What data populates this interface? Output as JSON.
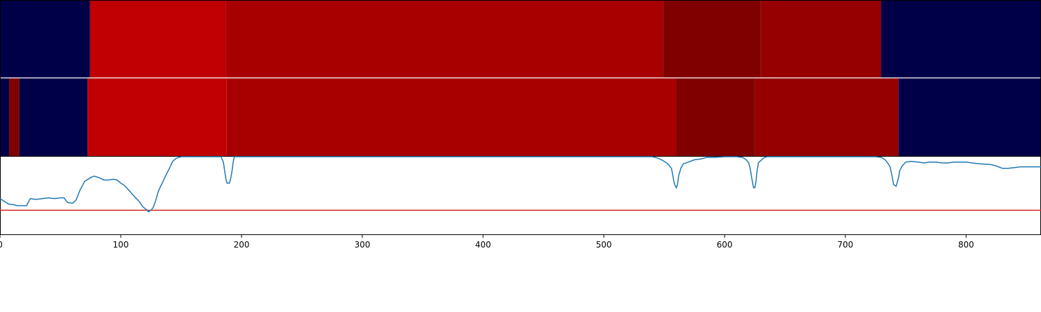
{
  "chart_data": {
    "type": "heatmap",
    "x_range": [
      0,
      862
    ],
    "x_ticks": [
      0,
      100,
      200,
      300,
      400,
      500,
      600,
      700,
      800
    ],
    "x_tick_labels": [
      "0",
      "100",
      "200",
      "300",
      "400",
      "500",
      "600",
      "700",
      "800"
    ],
    "colors": {
      "background_segment": "#000048",
      "bright_red": "#c00000",
      "red": "#a80000",
      "dark_red": "#800000",
      "medium_dark_red": "#960000",
      "line": "#1f77b4",
      "threshold_line": "#d62728"
    },
    "row_segments": [
      [
        {
          "start": 0,
          "end": 74.5,
          "color": "#000048"
        },
        {
          "start": 74.5,
          "end": 187,
          "color": "#c00000"
        },
        {
          "start": 187,
          "end": 549,
          "color": "#a80000"
        },
        {
          "start": 549,
          "end": 630,
          "color": "#800000"
        },
        {
          "start": 630,
          "end": 729.5,
          "color": "#960000"
        },
        {
          "start": 729.5,
          "end": 862,
          "color": "#000048"
        }
      ],
      [
        {
          "start": 0,
          "end": 7.5,
          "color": "#000048"
        },
        {
          "start": 7.5,
          "end": 16,
          "color": "#800000"
        },
        {
          "start": 16,
          "end": 72.5,
          "color": "#000048"
        },
        {
          "start": 72.5,
          "end": 187.5,
          "color": "#c00000"
        },
        {
          "start": 187.5,
          "end": 560,
          "color": "#a80000"
        },
        {
          "start": 560,
          "end": 625,
          "color": "#800000"
        },
        {
          "start": 625,
          "end": 744,
          "color": "#960000"
        },
        {
          "start": 744,
          "end": 862,
          "color": "#000048"
        }
      ]
    ],
    "line_series": {
      "y_range": [
        0,
        1
      ],
      "threshold": 0.31,
      "points": [
        [
          0,
          0.46
        ],
        [
          3,
          0.43
        ],
        [
          7,
          0.39
        ],
        [
          12,
          0.38
        ],
        [
          14,
          0.37
        ],
        [
          18,
          0.37
        ],
        [
          22,
          0.37
        ],
        [
          25,
          0.46
        ],
        [
          30,
          0.45
        ],
        [
          35,
          0.46
        ],
        [
          40,
          0.47
        ],
        [
          45,
          0.46
        ],
        [
          50,
          0.47
        ],
        [
          53,
          0.47
        ],
        [
          56,
          0.41
        ],
        [
          60,
          0.4
        ],
        [
          63,
          0.44
        ],
        [
          66,
          0.56
        ],
        [
          70,
          0.68
        ],
        [
          75,
          0.73
        ],
        [
          78,
          0.75
        ],
        [
          82,
          0.73
        ],
        [
          86,
          0.7
        ],
        [
          90,
          0.7
        ],
        [
          94,
          0.71
        ],
        [
          97,
          0.7
        ],
        [
          100,
          0.66
        ],
        [
          103,
          0.63
        ],
        [
          106,
          0.58
        ],
        [
          110,
          0.51
        ],
        [
          113,
          0.46
        ],
        [
          116,
          0.41
        ],
        [
          118,
          0.36
        ],
        [
          121,
          0.32
        ],
        [
          123,
          0.29
        ],
        [
          125,
          0.31
        ],
        [
          127,
          0.35
        ],
        [
          129,
          0.44
        ],
        [
          131,
          0.55
        ],
        [
          133,
          0.62
        ],
        [
          135,
          0.68
        ],
        [
          137,
          0.75
        ],
        [
          140,
          0.84
        ],
        [
          143,
          0.94
        ],
        [
          146,
          0.98
        ],
        [
          150,
          1.0
        ],
        [
          156,
          1.0
        ],
        [
          165,
          1.0
        ],
        [
          175,
          1.0
        ],
        [
          183,
          1.0
        ],
        [
          185,
          0.93
        ],
        [
          186,
          0.82
        ],
        [
          187,
          0.72
        ],
        [
          188,
          0.66
        ],
        [
          190,
          0.66
        ],
        [
          191,
          0.72
        ],
        [
          192,
          0.8
        ],
        [
          193,
          0.92
        ],
        [
          194,
          1.0
        ],
        [
          200,
          1.0
        ],
        [
          250,
          1.0
        ],
        [
          300,
          1.0
        ],
        [
          400,
          1.0
        ],
        [
          500,
          1.0
        ],
        [
          540,
          1.0
        ],
        [
          545,
          0.98
        ],
        [
          549,
          0.95
        ],
        [
          552,
          0.92
        ],
        [
          554,
          0.89
        ],
        [
          556,
          0.85
        ],
        [
          557,
          0.77
        ],
        [
          558,
          0.68
        ],
        [
          559,
          0.63
        ],
        [
          560,
          0.6
        ],
        [
          561,
          0.64
        ],
        [
          562,
          0.76
        ],
        [
          564,
          0.86
        ],
        [
          566,
          0.91
        ],
        [
          570,
          0.93
        ],
        [
          575,
          0.96
        ],
        [
          580,
          0.97
        ],
        [
          585,
          0.99
        ],
        [
          590,
          0.99
        ],
        [
          600,
          1.0
        ],
        [
          610,
          1.0
        ],
        [
          615,
          0.99
        ],
        [
          618,
          0.96
        ],
        [
          620,
          0.92
        ],
        [
          621,
          0.86
        ],
        [
          622,
          0.77
        ],
        [
          623,
          0.68
        ],
        [
          624,
          0.6
        ],
        [
          625,
          0.6
        ],
        [
          626,
          0.68
        ],
        [
          627,
          0.83
        ],
        [
          628,
          0.92
        ],
        [
          630,
          0.95
        ],
        [
          632,
          0.98
        ],
        [
          635,
          1.0
        ],
        [
          650,
          1.0
        ],
        [
          700,
          1.0
        ],
        [
          725,
          1.0
        ],
        [
          730,
          0.99
        ],
        [
          733,
          0.96
        ],
        [
          735,
          0.92
        ],
        [
          737,
          0.87
        ],
        [
          738,
          0.8
        ],
        [
          739,
          0.72
        ],
        [
          740,
          0.64
        ],
        [
          742,
          0.62
        ],
        [
          743,
          0.67
        ],
        [
          744,
          0.73
        ],
        [
          745,
          0.82
        ],
        [
          747,
          0.88
        ],
        [
          750,
          0.93
        ],
        [
          755,
          0.94
        ],
        [
          760,
          0.93
        ],
        [
          765,
          0.92
        ],
        [
          770,
          0.93
        ],
        [
          775,
          0.93
        ],
        [
          780,
          0.92
        ],
        [
          785,
          0.92
        ],
        [
          790,
          0.93
        ],
        [
          800,
          0.93
        ],
        [
          810,
          0.91
        ],
        [
          820,
          0.9
        ],
        [
          825,
          0.88
        ],
        [
          830,
          0.85
        ],
        [
          835,
          0.85
        ],
        [
          840,
          0.86
        ],
        [
          845,
          0.87
        ],
        [
          855,
          0.87
        ],
        [
          862,
          0.87
        ]
      ]
    }
  }
}
